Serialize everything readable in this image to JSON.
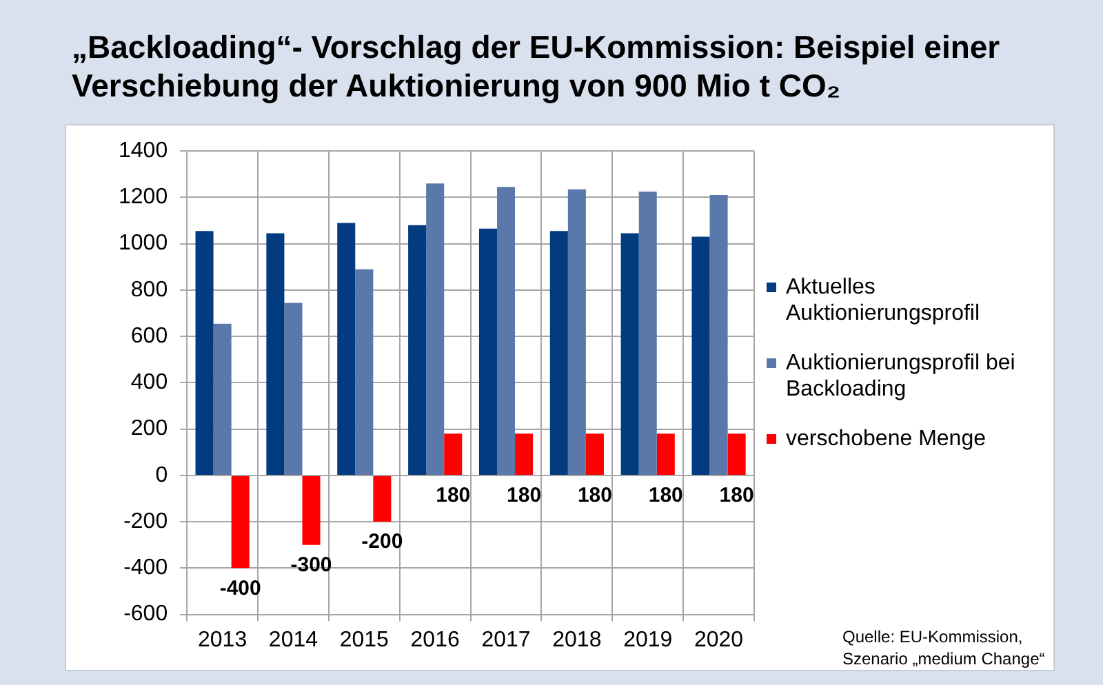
{
  "chart_data": {
    "type": "bar",
    "title": "„Backloading“- Vorschlag der EU-Kommission: Beispiel einer Verschiebung der Auktionierung von 900 Mio t CO₂",
    "categories": [
      "2013",
      "2014",
      "2015",
      "2016",
      "2017",
      "2018",
      "2019",
      "2020"
    ],
    "series": [
      {
        "name": "Aktuelles Auktionierungsprofil",
        "color": "#023b80",
        "values": [
          1055,
          1045,
          1090,
          1080,
          1065,
          1055,
          1045,
          1030
        ]
      },
      {
        "name": "Auktionierungsprofil bei Backloading",
        "color": "#5b78ab",
        "values": [
          655,
          745,
          890,
          1260,
          1245,
          1235,
          1225,
          1210
        ]
      },
      {
        "name": "verschobene Menge",
        "color": "#ff0000",
        "values": [
          -400,
          -300,
          -200,
          180,
          180,
          180,
          180,
          180
        ],
        "value_labels": [
          "-400",
          "-300",
          "-200",
          "180",
          "180",
          "180",
          "180",
          "180"
        ]
      }
    ],
    "ylim": [
      -600,
      1400
    ],
    "yticks": [
      -600,
      -400,
      -200,
      0,
      200,
      400,
      600,
      800,
      1000,
      1200,
      1400
    ],
    "grid": true,
    "legend": "right",
    "annotations": [
      "Quelle: EU-Kommission, Szenario „medium Change“"
    ]
  }
}
